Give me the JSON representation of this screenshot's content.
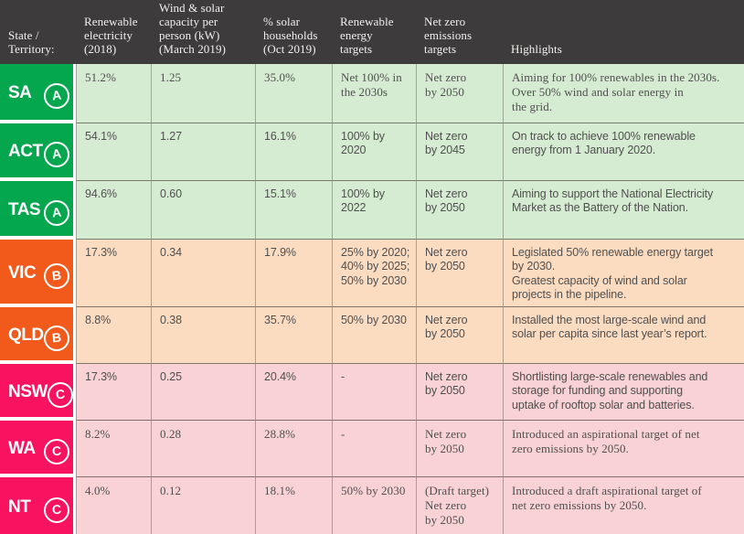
{
  "colors": {
    "header_bg": "#3d3b3c",
    "header_text": "#f2f1ee",
    "cell_text": "#4f4f4f",
    "tier_a_strong": "#04a64e",
    "tier_a_light": "#d6ecd2",
    "tier_b_strong": "#f25a1c",
    "tier_b_light": "#fcdcc1",
    "tier_c_strong": "#f8125f",
    "tier_c_light": "#f8d2d4"
  },
  "chart_data": {
    "type": "table",
    "title": "State renewable energy scorecard",
    "columns": [
      "State /\nTerritory:",
      "Renewable\nelectricity\n(2018)",
      "Wind & solar\ncapacity per\nperson (kW)\n(March 2019)",
      "% solar\nhouseholds\n(Oct 2019)",
      "Renewable\nenergy\ntargets",
      "Net zero\nemissions\ntargets",
      "Highlights"
    ],
    "rows": [
      {
        "state": "SA",
        "grade": "A",
        "tier": "A",
        "renewable_electricity": "51.2%",
        "wind_solar_capacity": "1.25",
        "solar_households": "35.0%",
        "renewable_target": "Net 100% in\nthe 2030s",
        "net_zero_target": "Net zero\nby 2050",
        "highlights": "Aiming for 100% renewables in the 2030s.\nOver 50% wind and solar energy in\nthe grid."
      },
      {
        "state": "ACT",
        "grade": "A",
        "tier": "A",
        "renewable_electricity": "54.1%",
        "wind_solar_capacity": "1.27",
        "solar_households": "16.1%",
        "renewable_target": "100% by 2020",
        "net_zero_target": "Net zero\nby 2045",
        "highlights": "On track to achieve 100% renewable\nenergy from 1 January 2020."
      },
      {
        "state": "TAS",
        "grade": "A",
        "tier": "A",
        "renewable_electricity": "94.6%",
        "wind_solar_capacity": "0.60",
        "solar_households": "15.1%",
        "renewable_target": "100% by 2022",
        "net_zero_target": "Net zero\nby 2050",
        "highlights": "Aiming to support the National Electricity\nMarket as the Battery of the Nation."
      },
      {
        "state": "VIC",
        "grade": "B",
        "tier": "B",
        "renewable_electricity": "17.3%",
        "wind_solar_capacity": "0.34",
        "solar_households": "17.9%",
        "renewable_target": "25% by 2020;\n40% by 2025;\n50% by 2030",
        "net_zero_target": "Net zero\nby 2050",
        "highlights": "Legislated 50% renewable energy target\nby 2030.\nGreatest capacity of wind and solar\nprojects in the pipeline."
      },
      {
        "state": "QLD",
        "grade": "B",
        "tier": "B",
        "renewable_electricity": "8.8%",
        "wind_solar_capacity": "0.38",
        "solar_households": "35.7%",
        "renewable_target": "50% by 2030",
        "net_zero_target": "Net zero\nby 2050",
        "highlights": "Installed the most large-scale wind and\nsolar per capita since last year’s report."
      },
      {
        "state": "NSW",
        "grade": "C",
        "tier": "C",
        "renewable_electricity": "17.3%",
        "wind_solar_capacity": "0.25",
        "solar_households": "20.4%",
        "renewable_target": "-",
        "net_zero_target": "Net zero\nby 2050",
        "highlights": "Shortlisting large-scale renewables and\nstorage for funding and supporting\nuptake of rooftop solar and batteries."
      },
      {
        "state": "WA",
        "grade": "C",
        "tier": "C",
        "renewable_electricity": "8.2%",
        "wind_solar_capacity": "0.28",
        "solar_households": "28.8%",
        "renewable_target": "-",
        "net_zero_target": "Net zero\nby 2050",
        "highlights": "Introduced an aspirational target of net\nzero emissions by 2050."
      },
      {
        "state": "NT",
        "grade": "C",
        "tier": "C",
        "renewable_electricity": "4.0%",
        "wind_solar_capacity": "0.12",
        "solar_households": "18.1%",
        "renewable_target": "50% by 2030",
        "net_zero_target": "(Draft target)\nNet zero\nby 2050",
        "highlights": "Introduced a draft aspirational target of\nnet zero emissions by 2050."
      }
    ]
  }
}
